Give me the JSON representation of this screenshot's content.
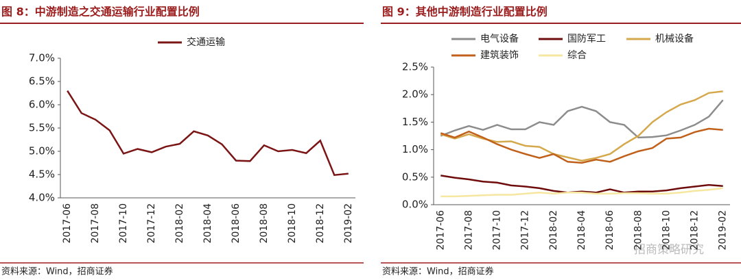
{
  "chart_data": [
    {
      "type": "line",
      "title": "图 8：中游制造之交通运输行业配置比例",
      "source": "资料来源：Wind，招商证券",
      "categories": [
        "2017-06",
        null,
        "2017-08",
        null,
        "2017-10",
        null,
        "2017-12",
        null,
        "2018-02",
        null,
        "2018-04",
        null,
        "2018-06",
        null,
        "2018-08",
        null,
        "2018-10",
        null,
        "2018-12",
        null,
        "2019-02"
      ],
      "series": [
        {
          "name": "交通运输",
          "color": "#7b1515",
          "values": [
            6.3,
            5.82,
            5.68,
            5.45,
            4.95,
            5.05,
            4.98,
            5.1,
            5.16,
            5.43,
            5.34,
            5.15,
            4.8,
            4.79,
            5.13,
            5.0,
            5.03,
            4.96,
            5.23,
            4.49,
            4.52
          ]
        }
      ],
      "ylim": [
        4.0,
        7.0
      ],
      "yticks": [
        {
          "value": 4.0,
          "label": "4.0%"
        },
        {
          "value": 4.5,
          "label": "4.5%"
        },
        {
          "value": 5.0,
          "label": "5.0%"
        },
        {
          "value": 5.5,
          "label": "5.5%"
        },
        {
          "value": 6.0,
          "label": "6.0%"
        },
        {
          "value": 6.5,
          "label": "6.5%"
        },
        {
          "value": 7.0,
          "label": "7.0%"
        }
      ],
      "legend": "top"
    },
    {
      "type": "line",
      "title": "图 9：其他中游制造行业配置比例",
      "source": "资料来源：Wind，招商证券",
      "categories": [
        "2017-06",
        null,
        "2017-08",
        null,
        "2017-10",
        null,
        "2017-12",
        null,
        "2018-02",
        null,
        "2018-04",
        null,
        "2018-06",
        null,
        "2018-08",
        null,
        "2018-10",
        null,
        "2018-12",
        null,
        "2019-02"
      ],
      "series": [
        {
          "name": "电气设备",
          "color": "#8c8c8c",
          "values": [
            1.25,
            1.35,
            1.43,
            1.36,
            1.45,
            1.37,
            1.37,
            1.5,
            1.45,
            1.7,
            1.78,
            1.7,
            1.5,
            1.45,
            1.22,
            1.23,
            1.26,
            1.35,
            1.45,
            1.6,
            1.9
          ]
        },
        {
          "name": "国防军工",
          "color": "#6e0b0b",
          "values": [
            0.53,
            0.49,
            0.46,
            0.42,
            0.4,
            0.35,
            0.33,
            0.3,
            0.25,
            0.22,
            0.24,
            0.22,
            0.28,
            0.22,
            0.24,
            0.24,
            0.26,
            0.3,
            0.33,
            0.36,
            0.34
          ]
        },
        {
          "name": "机械设备",
          "color": "#d4a84b",
          "values": [
            1.28,
            1.2,
            1.28,
            1.2,
            1.14,
            1.15,
            1.07,
            1.05,
            0.92,
            0.86,
            0.8,
            0.85,
            0.92,
            1.1,
            1.25,
            1.5,
            1.68,
            1.82,
            1.9,
            2.03,
            2.06
          ]
        },
        {
          "name": "建筑装饰",
          "color": "#c0601a",
          "values": [
            1.3,
            1.22,
            1.33,
            1.22,
            1.1,
            1.0,
            0.92,
            0.85,
            0.92,
            0.78,
            0.76,
            0.82,
            0.78,
            0.88,
            0.97,
            1.03,
            1.2,
            1.22,
            1.32,
            1.38,
            1.36
          ]
        },
        {
          "name": "综合",
          "color": "#f5e6a0",
          "values": [
            0.15,
            0.15,
            0.16,
            0.17,
            0.18,
            0.18,
            0.2,
            0.22,
            0.2,
            0.22,
            0.22,
            0.2,
            0.2,
            0.21,
            0.21,
            0.2,
            0.2,
            0.22,
            0.25,
            0.27,
            0.3
          ]
        }
      ],
      "ylim": [
        0,
        2.5
      ],
      "yticks": [
        {
          "value": 0,
          "label": "0.0%"
        },
        {
          "value": 0.5,
          "label": "0.5%"
        },
        {
          "value": 1.0,
          "label": "1.0%"
        },
        {
          "value": 1.5,
          "label": "1.5%"
        },
        {
          "value": 2.0,
          "label": "2.0%"
        },
        {
          "value": 2.5,
          "label": "2.5%"
        }
      ],
      "legend": "top"
    }
  ],
  "watermark": "招商策略研究"
}
